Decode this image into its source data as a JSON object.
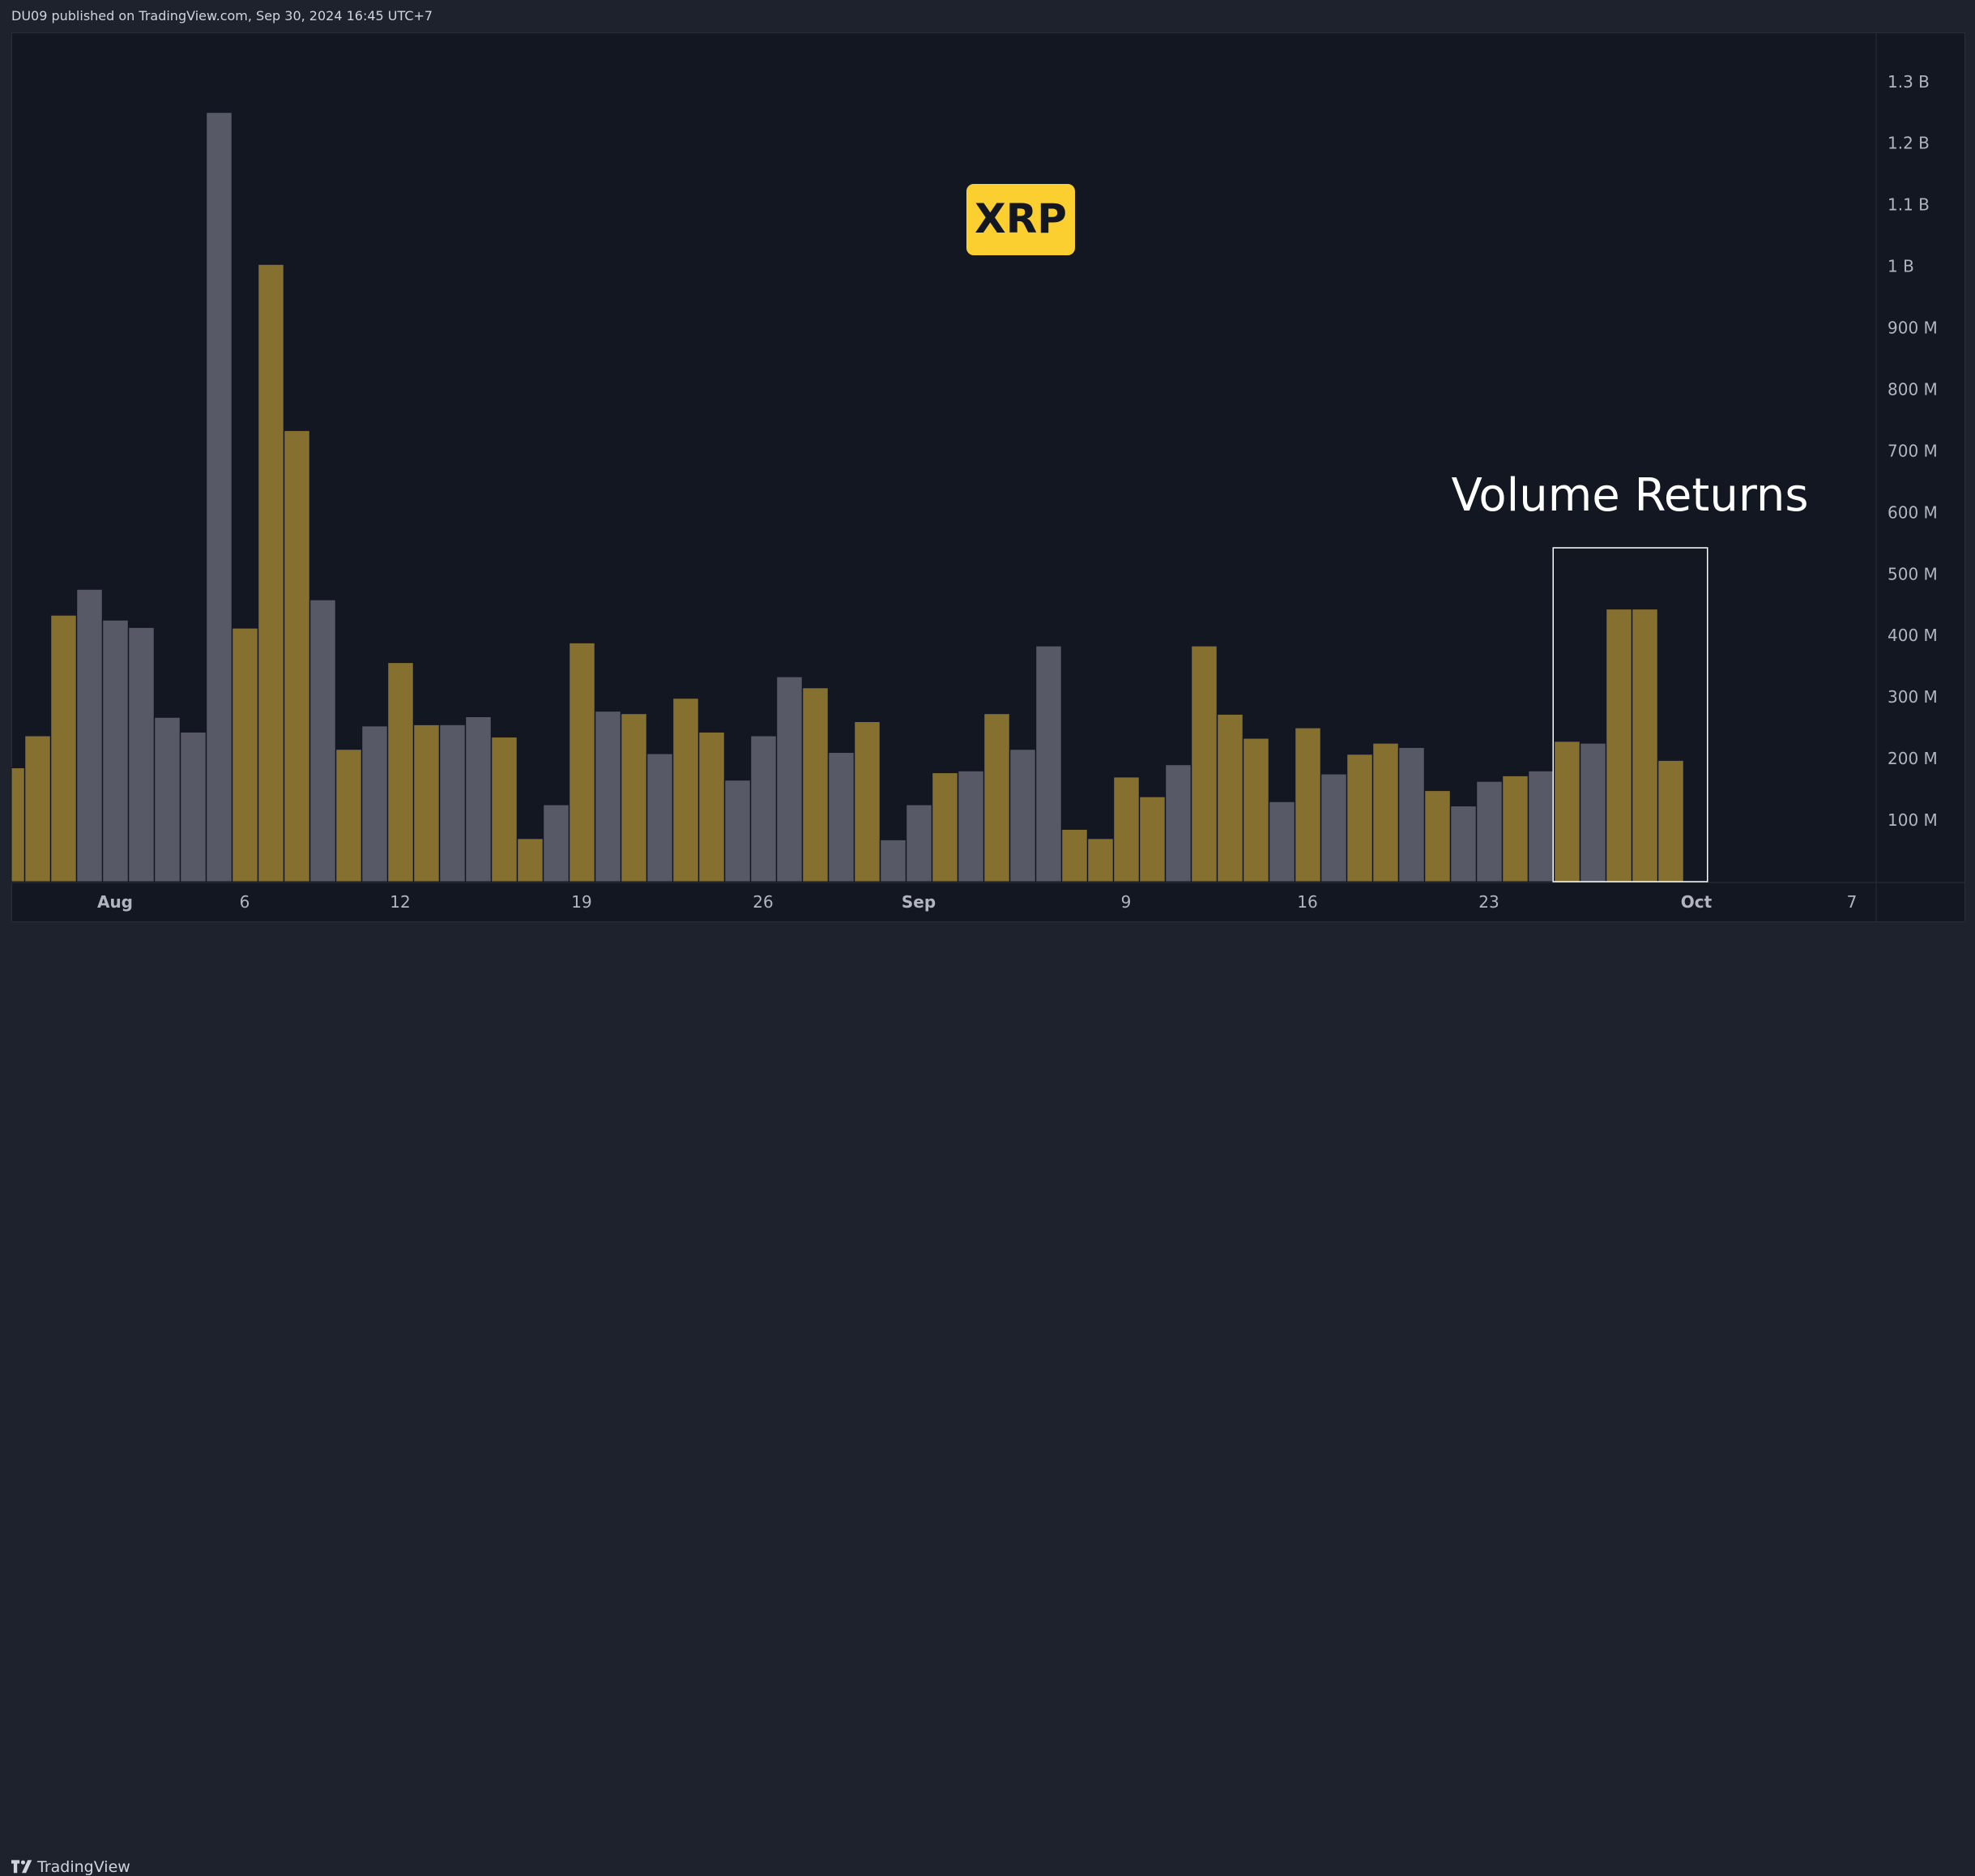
{
  "header": {
    "publish_info": "DU09 published on TradingView.com, Sep 30, 2024 16:45 UTC+7"
  },
  "footer": {
    "brand": "TradingView"
  },
  "annotations": {
    "symbol_badge": "XRP",
    "highlight_label": "Volume Returns"
  },
  "colors": {
    "background": "#131722",
    "up_volume": "#857030",
    "down_volume": "#575a66",
    "badge": "#fccf30",
    "highlight_box": "#ffffff"
  },
  "chart_data": {
    "type": "bar",
    "title": "",
    "xlabel": "",
    "ylabel": "",
    "y_unit": "millions",
    "ylim": [
      0,
      1380
    ],
    "y_ticks": [
      {
        "value": 100,
        "label": "100 M"
      },
      {
        "value": 200,
        "label": "200 M"
      },
      {
        "value": 300,
        "label": "300 M"
      },
      {
        "value": 400,
        "label": "400 M"
      },
      {
        "value": 500,
        "label": "500 M"
      },
      {
        "value": 600,
        "label": "600 M"
      },
      {
        "value": 700,
        "label": "700 M"
      },
      {
        "value": 800,
        "label": "800 M"
      },
      {
        "value": 900,
        "label": "900 M"
      },
      {
        "value": 1000,
        "label": "1 B"
      },
      {
        "value": 1100,
        "label": "1.1 B"
      },
      {
        "value": 1200,
        "label": "1.2 B"
      },
      {
        "value": 1300,
        "label": "1.3 B"
      }
    ],
    "x_ticks": [
      {
        "date": "2024-08-01",
        "label": "Aug",
        "bold": true
      },
      {
        "date": "2024-08-06",
        "label": "6",
        "bold": false
      },
      {
        "date": "2024-08-12",
        "label": "12",
        "bold": false
      },
      {
        "date": "2024-08-19",
        "label": "19",
        "bold": false
      },
      {
        "date": "2024-08-26",
        "label": "26",
        "bold": false
      },
      {
        "date": "2024-09-01",
        "label": "Sep",
        "bold": true
      },
      {
        "date": "2024-09-09",
        "label": "9",
        "bold": false
      },
      {
        "date": "2024-09-16",
        "label": "16",
        "bold": false
      },
      {
        "date": "2024-09-23",
        "label": "23",
        "bold": false
      },
      {
        "date": "2024-10-01",
        "label": "Oct",
        "bold": true
      },
      {
        "date": "2024-10-07",
        "label": "7",
        "bold": false
      }
    ],
    "x_range": [
      "2024-07-28",
      "2024-10-11"
    ],
    "highlight": {
      "from": "2024-09-26",
      "to": "2024-09-30",
      "label": "Volume Returns"
    },
    "bars": [
      {
        "date": "2024-07-28",
        "value": 185,
        "dir": "up"
      },
      {
        "date": "2024-07-29",
        "value": 237,
        "dir": "up"
      },
      {
        "date": "2024-07-30",
        "value": 433,
        "dir": "up"
      },
      {
        "date": "2024-07-31",
        "value": 475,
        "dir": "down"
      },
      {
        "date": "2024-08-01",
        "value": 425,
        "dir": "down"
      },
      {
        "date": "2024-08-02",
        "value": 413,
        "dir": "down"
      },
      {
        "date": "2024-08-03",
        "value": 267,
        "dir": "down"
      },
      {
        "date": "2024-08-04",
        "value": 243,
        "dir": "down"
      },
      {
        "date": "2024-08-05",
        "value": 1250,
        "dir": "down"
      },
      {
        "date": "2024-08-06",
        "value": 412,
        "dir": "up"
      },
      {
        "date": "2024-08-07",
        "value": 1003,
        "dir": "up"
      },
      {
        "date": "2024-08-08",
        "value": 733,
        "dir": "up"
      },
      {
        "date": "2024-08-09",
        "value": 458,
        "dir": "down"
      },
      {
        "date": "2024-08-10",
        "value": 215,
        "dir": "up"
      },
      {
        "date": "2024-08-11",
        "value": 253,
        "dir": "down"
      },
      {
        "date": "2024-08-12",
        "value": 356,
        "dir": "up"
      },
      {
        "date": "2024-08-13",
        "value": 255,
        "dir": "up"
      },
      {
        "date": "2024-08-14",
        "value": 255,
        "dir": "down"
      },
      {
        "date": "2024-08-15",
        "value": 268,
        "dir": "down"
      },
      {
        "date": "2024-08-16",
        "value": 235,
        "dir": "up"
      },
      {
        "date": "2024-08-17",
        "value": 70,
        "dir": "up"
      },
      {
        "date": "2024-08-18",
        "value": 125,
        "dir": "down"
      },
      {
        "date": "2024-08-19",
        "value": 388,
        "dir": "up"
      },
      {
        "date": "2024-08-20",
        "value": 277,
        "dir": "down"
      },
      {
        "date": "2024-08-21",
        "value": 273,
        "dir": "up"
      },
      {
        "date": "2024-08-22",
        "value": 208,
        "dir": "down"
      },
      {
        "date": "2024-08-23",
        "value": 298,
        "dir": "up"
      },
      {
        "date": "2024-08-24",
        "value": 243,
        "dir": "up"
      },
      {
        "date": "2024-08-25",
        "value": 165,
        "dir": "down"
      },
      {
        "date": "2024-08-26",
        "value": 237,
        "dir": "down"
      },
      {
        "date": "2024-08-27",
        "value": 333,
        "dir": "down"
      },
      {
        "date": "2024-08-28",
        "value": 315,
        "dir": "up"
      },
      {
        "date": "2024-08-29",
        "value": 210,
        "dir": "down"
      },
      {
        "date": "2024-08-30",
        "value": 260,
        "dir": "up"
      },
      {
        "date": "2024-08-31",
        "value": 68,
        "dir": "down"
      },
      {
        "date": "2024-09-01",
        "value": 125,
        "dir": "down"
      },
      {
        "date": "2024-09-02",
        "value": 177,
        "dir": "up"
      },
      {
        "date": "2024-09-03",
        "value": 180,
        "dir": "down"
      },
      {
        "date": "2024-09-04",
        "value": 273,
        "dir": "up"
      },
      {
        "date": "2024-09-05",
        "value": 215,
        "dir": "down"
      },
      {
        "date": "2024-09-06",
        "value": 383,
        "dir": "down"
      },
      {
        "date": "2024-09-07",
        "value": 85,
        "dir": "up"
      },
      {
        "date": "2024-09-08",
        "value": 70,
        "dir": "up"
      },
      {
        "date": "2024-09-09",
        "value": 170,
        "dir": "up"
      },
      {
        "date": "2024-09-10",
        "value": 138,
        "dir": "up"
      },
      {
        "date": "2024-09-11",
        "value": 190,
        "dir": "down"
      },
      {
        "date": "2024-09-12",
        "value": 383,
        "dir": "up"
      },
      {
        "date": "2024-09-13",
        "value": 272,
        "dir": "up"
      },
      {
        "date": "2024-09-14",
        "value": 233,
        "dir": "up"
      },
      {
        "date": "2024-09-15",
        "value": 130,
        "dir": "down"
      },
      {
        "date": "2024-09-16",
        "value": 250,
        "dir": "up"
      },
      {
        "date": "2024-09-17",
        "value": 175,
        "dir": "down"
      },
      {
        "date": "2024-09-18",
        "value": 207,
        "dir": "up"
      },
      {
        "date": "2024-09-19",
        "value": 225,
        "dir": "up"
      },
      {
        "date": "2024-09-20",
        "value": 218,
        "dir": "down"
      },
      {
        "date": "2024-09-21",
        "value": 148,
        "dir": "up"
      },
      {
        "date": "2024-09-22",
        "value": 123,
        "dir": "down"
      },
      {
        "date": "2024-09-23",
        "value": 163,
        "dir": "down"
      },
      {
        "date": "2024-09-24",
        "value": 172,
        "dir": "up"
      },
      {
        "date": "2024-09-25",
        "value": 180,
        "dir": "down"
      },
      {
        "date": "2024-09-26",
        "value": 228,
        "dir": "up"
      },
      {
        "date": "2024-09-27",
        "value": 225,
        "dir": "down"
      },
      {
        "date": "2024-09-28",
        "value": 443,
        "dir": "up"
      },
      {
        "date": "2024-09-29",
        "value": 443,
        "dir": "up"
      },
      {
        "date": "2024-09-30",
        "value": 197,
        "dir": "up"
      }
    ]
  }
}
